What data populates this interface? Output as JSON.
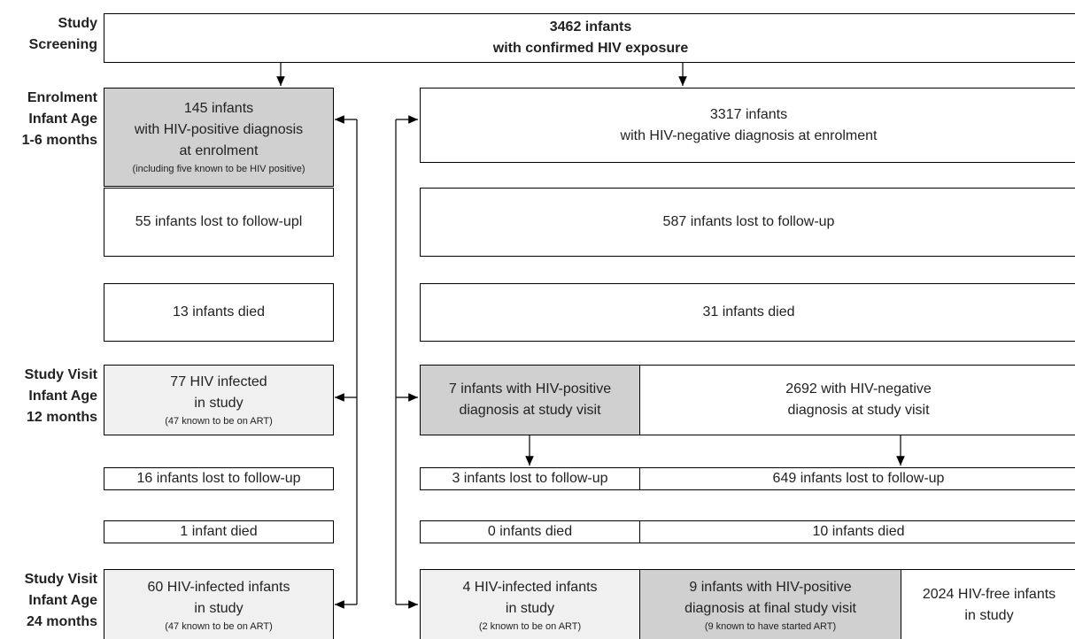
{
  "row_labels": [
    [
      "Study",
      "Screening"
    ],
    [
      "Enrolment",
      "Infant Age",
      "1-6 months"
    ],
    [
      "Study Visit",
      "Infant Age",
      "12 months"
    ],
    [
      "Study Visit",
      "Infant Age",
      "24 months"
    ]
  ],
  "boxes": [
    {
      "lines": [
        "3462 infants",
        "with confirmed HIV exposure"
      ]
    },
    {
      "lines": [
        "145 infants",
        "with HIV-positive diagnosis",
        "at enrolment"
      ],
      "note": "(including five known to be HIV positive)"
    },
    {
      "lines": [
        "3317 infants",
        "with HIV-negative diagnosis at enrolment"
      ]
    },
    {
      "lines": [
        "55 infants lost to follow-upl"
      ]
    },
    {
      "lines": [
        "587 infants lost to follow-up"
      ]
    },
    {
      "lines": [
        "13 infants died"
      ]
    },
    {
      "lines": [
        "31 infants died"
      ]
    },
    {
      "lines": [
        "77 HIV infected",
        "in study"
      ],
      "note": "(47 known to be on ART)"
    },
    {
      "lines": [
        "7 infants with HIV-positive",
        "diagnosis at study visit"
      ]
    },
    {
      "lines": [
        "2692 with HIV-negative",
        "diagnosis at study visit"
      ]
    },
    {
      "lines": [
        "16 infants lost to follow-up"
      ]
    },
    {
      "lines": [
        "3 infants lost to follow-up"
      ]
    },
    {
      "lines": [
        "649 infants lost to follow-up"
      ]
    },
    {
      "lines": [
        "1 infant died"
      ]
    },
    {
      "lines": [
        "0 infants died"
      ]
    },
    {
      "lines": [
        "10 infants died"
      ]
    },
    {
      "lines": [
        "60 HIV-infected infants",
        "in study"
      ],
      "note": "(47 known to be on ART)"
    },
    {
      "lines": [
        "4 HIV-infected infants",
        "in study"
      ],
      "note": "(2 known to be on ART)"
    },
    {
      "lines": [
        "9 infants with HIV-positive",
        "diagnosis at final study visit"
      ],
      "note": "(9 known to have started ART)"
    },
    {
      "lines": [
        "2024 HIV-free infants",
        "in study"
      ]
    }
  ]
}
